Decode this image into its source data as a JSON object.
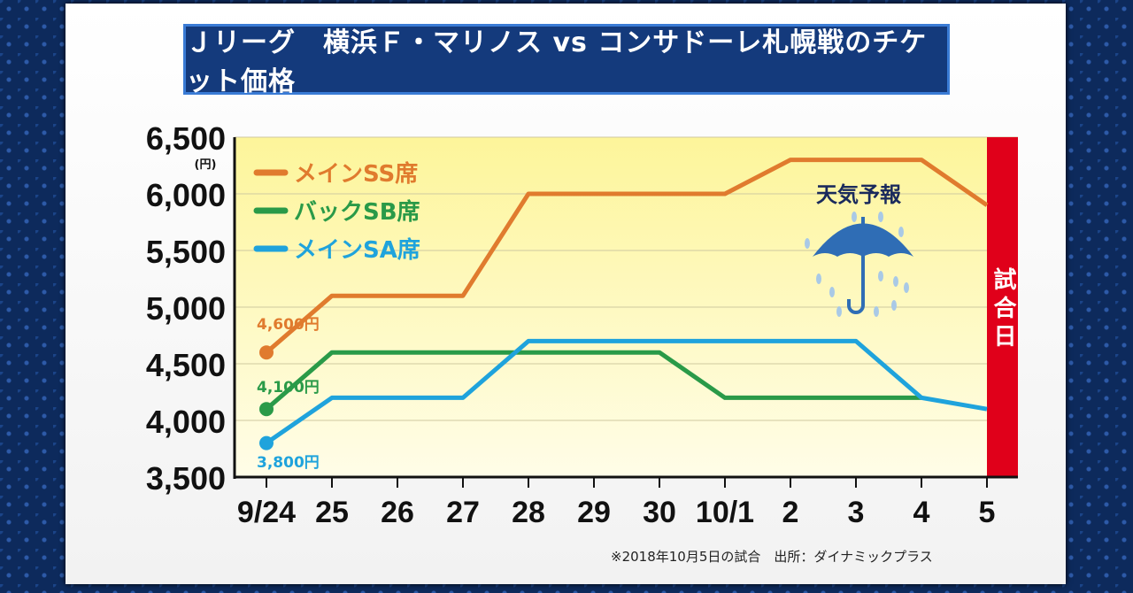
{
  "title": "Ｊリーグ　横浜Ｆ・マリノス vs コンサドーレ札幌戦のチケット価格",
  "footnote": "※2018年10月5日の試合　出所：ダイナミックプラス",
  "chart_data": {
    "type": "line",
    "title": "Ｊリーグ　横浜Ｆ・マリノス vs コンサドーレ札幌戦のチケット価格",
    "ylabel": "(円)",
    "ylim": [
      3500,
      6500
    ],
    "yticks": [
      "3,500",
      "4,000",
      "4,500",
      "5,000",
      "5,500",
      "6,000",
      "6,500"
    ],
    "ytick_values": [
      3500,
      4000,
      4500,
      5000,
      5500,
      6000,
      6500
    ],
    "categories": [
      "9/24",
      "25",
      "26",
      "27",
      "28",
      "29",
      "30",
      "10/1",
      "2",
      "3",
      "4",
      "5"
    ],
    "grid": true,
    "legend_position": "top-left",
    "series": [
      {
        "name": "メインSS席",
        "color": "#e07b2e",
        "values": [
          4600,
          5100,
          5100,
          5100,
          6000,
          6000,
          6000,
          6000,
          6300,
          6300,
          6300,
          5900
        ],
        "start_label": "4,600円"
      },
      {
        "name": "バックSB席",
        "color": "#2a9a48",
        "values": [
          4100,
          4600,
          4600,
          4600,
          4600,
          4600,
          4600,
          4200,
          4200,
          4200,
          4200,
          null
        ],
        "start_label": "4,100円"
      },
      {
        "name": "メインSA席",
        "color": "#1fa3dc",
        "values": [
          3800,
          4200,
          4200,
          4200,
          4700,
          4700,
          4700,
          4700,
          4700,
          4700,
          4200,
          4100
        ],
        "start_label": "3,800円"
      }
    ],
    "annotations": {
      "match_day": "試合日",
      "weather": "天気予報",
      "weather_icon": "umbrella-rain-icon",
      "match_day_color": "#e0001a"
    }
  }
}
